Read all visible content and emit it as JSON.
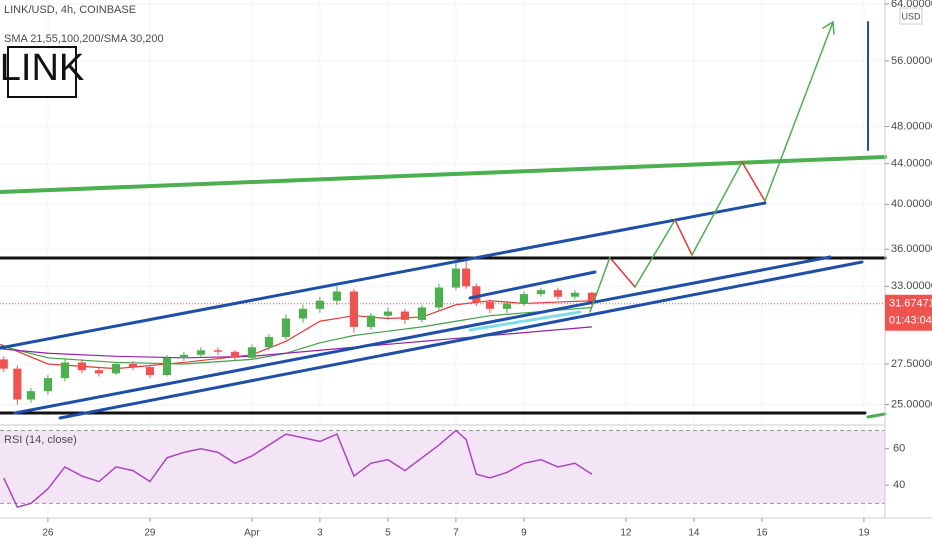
{
  "chart_data": {
    "type": "candlestick",
    "title": "LINK/USD, 4h, COINBASE",
    "indicator_label": "SMA 21,55,100,200/SMA 30,200",
    "logo": "LINK",
    "currency": "USD",
    "up_color": "#4caf50",
    "down_color": "#ef5350",
    "x": [
      -1.3,
      -0.9,
      -0.5,
      0,
      0.5,
      1,
      1.5,
      2,
      2.5,
      3,
      3.5,
      4,
      4.5,
      5,
      5.5,
      6,
      6.5,
      7,
      7.5,
      8,
      8.5,
      9,
      9.5,
      10,
      10.5,
      11,
      11.5,
      12,
      12.3,
      12.6,
      13,
      13.5,
      14,
      14.5,
      15,
      15.5,
      16
    ],
    "open": [
      27.8,
      27.2,
      25.3,
      25.8,
      26.6,
      27.6,
      27.1,
      26.9,
      27.5,
      27.3,
      26.8,
      27.9,
      28.1,
      28.4,
      28.3,
      27.9,
      28.6,
      29.3,
      30.6,
      31.3,
      31.9,
      32.6,
      30.0,
      30.8,
      31.1,
      30.5,
      31.4,
      32.9,
      34.4,
      33.0,
      31.8,
      31.3,
      31.7,
      32.4,
      32.7,
      32.2,
      32.5
    ],
    "high": [
      28.0,
      27.4,
      26.0,
      26.8,
      27.8,
      27.8,
      27.3,
      27.6,
      27.7,
      27.4,
      28.1,
      28.3,
      28.6,
      28.6,
      28.4,
      28.8,
      29.5,
      30.9,
      31.6,
      32.2,
      33.0,
      32.8,
      31.0,
      31.4,
      31.3,
      31.6,
      33.2,
      34.9,
      35.1,
      33.2,
      32.0,
      31.9,
      32.6,
      32.9,
      32.9,
      32.7,
      32.6
    ],
    "low": [
      27.0,
      25.0,
      25.1,
      25.6,
      26.4,
      26.9,
      26.7,
      26.8,
      27.1,
      26.6,
      26.7,
      27.7,
      27.9,
      28.1,
      27.7,
      27.8,
      28.4,
      29.1,
      30.3,
      31.0,
      31.6,
      29.6,
      29.8,
      30.5,
      30.2,
      30.3,
      31.2,
      32.7,
      32.8,
      31.5,
      31.0,
      31.0,
      31.5,
      32.2,
      32.0,
      32.0,
      31.5
    ],
    "close": [
      27.2,
      25.3,
      25.8,
      26.6,
      27.6,
      27.1,
      26.9,
      27.5,
      27.3,
      26.8,
      27.9,
      28.1,
      28.4,
      28.3,
      27.9,
      28.6,
      29.3,
      30.6,
      31.3,
      31.9,
      32.6,
      30.0,
      30.8,
      31.1,
      30.5,
      31.4,
      32.9,
      34.4,
      33.0,
      31.8,
      31.3,
      31.7,
      32.4,
      32.7,
      32.2,
      32.5,
      31.7
    ],
    "overlays": [
      {
        "color": "#e53935",
        "x": [
          -1.4,
          0,
          2,
          4,
          6,
          7,
          8,
          9,
          10,
          11,
          12,
          13,
          14,
          15,
          16
        ],
        "values": [
          28.8,
          27.5,
          27.2,
          27.6,
          28.1,
          29.0,
          30.4,
          30.8,
          30.6,
          30.7,
          31.6,
          31.9,
          31.7,
          31.8,
          31.9
        ]
      },
      {
        "color": "#43a047",
        "x": [
          -1.4,
          0,
          2,
          4,
          6,
          7,
          8,
          9,
          10,
          11,
          12,
          13,
          14,
          15,
          16
        ],
        "values": [
          28.7,
          27.9,
          27.6,
          27.5,
          27.8,
          28.2,
          28.9,
          29.4,
          29.7,
          30.0,
          30.4,
          30.8,
          31.0,
          31.2,
          31.4
        ]
      },
      {
        "color": "#8e24aa",
        "x": [
          -1.4,
          0,
          2,
          4,
          6,
          7,
          8,
          9,
          10,
          11,
          12,
          13,
          14,
          15,
          16
        ],
        "values": [
          28.5,
          28.2,
          28.0,
          27.9,
          28.0,
          28.2,
          28.4,
          28.6,
          28.8,
          29.0,
          29.2,
          29.4,
          29.6,
          29.8,
          30.0
        ]
      }
    ],
    "xlim": [
      -1.41,
      24.62
    ],
    "xticks": [
      {
        "value": 0,
        "label": "26"
      },
      {
        "value": 3,
        "label": "29"
      },
      {
        "value": 6,
        "label": "Apr"
      },
      {
        "value": 8,
        "label": "3"
      },
      {
        "value": 10,
        "label": "5"
      },
      {
        "value": 12,
        "label": "7"
      },
      {
        "value": 14,
        "label": "9"
      },
      {
        "value": 17,
        "label": "12"
      },
      {
        "value": 19,
        "label": "14"
      },
      {
        "value": 21,
        "label": "16"
      },
      {
        "value": 24,
        "label": "19"
      }
    ],
    "ylim": [
      24,
      64
    ],
    "log_scale": true,
    "yticks": [
      {
        "value": 25,
        "label": "25.00000"
      },
      {
        "value": 27.5,
        "label": "27.50000"
      },
      {
        "value": 33,
        "label": "33.00000"
      },
      {
        "value": 36,
        "label": "36.00000"
      },
      {
        "value": 40,
        "label": "40.00000"
      },
      {
        "value": 44,
        "label": "44.00000"
      },
      {
        "value": 48,
        "label": "48.00000"
      },
      {
        "value": 56,
        "label": "56.00000"
      },
      {
        "value": 64,
        "label": "64.00000"
      }
    ],
    "last_price": 31.67471,
    "countdown": "01:43:04",
    "rsi": {
      "title": "RSI (14, close)",
      "color": "#ab47bc",
      "values": [
        44,
        28,
        30,
        38,
        50,
        45,
        42,
        50,
        48,
        42,
        55,
        58,
        60,
        58,
        52,
        56,
        62,
        68,
        66,
        64,
        68,
        45,
        52,
        54,
        48,
        55,
        62,
        70,
        65,
        46,
        44,
        47,
        52,
        54,
        50,
        52,
        46
      ],
      "ylim": [
        22,
        73
      ],
      "yticks": [
        40,
        60
      ],
      "band": [
        30,
        70
      ]
    }
  }
}
